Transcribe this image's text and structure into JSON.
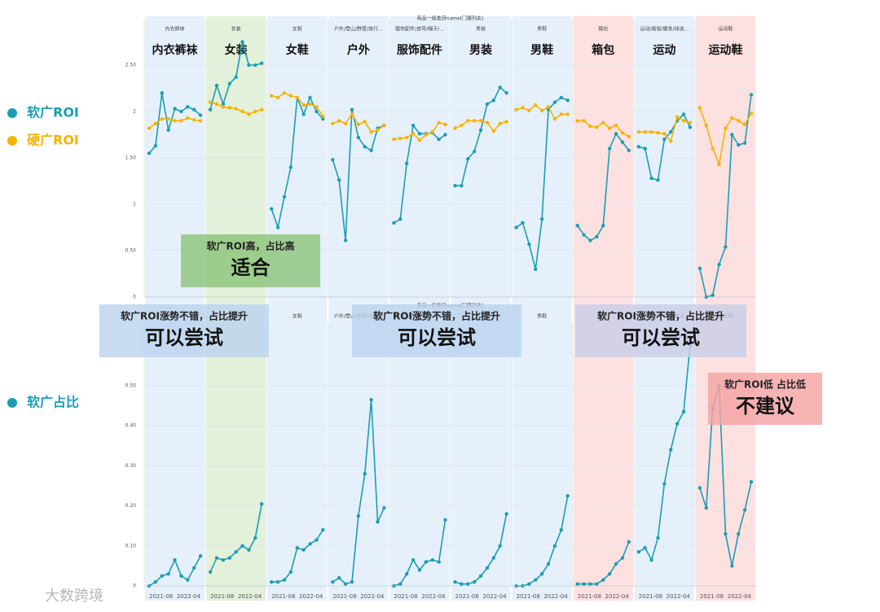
{
  "chart_data": [
    {
      "type": "line",
      "title": "商品一级类目name(门捷列夫)",
      "series": [
        {
          "name": "软广ROI",
          "color": "#1a9eb5"
        },
        {
          "name": "硬广ROI",
          "color": "#f5b400"
        }
      ],
      "ylim": [
        0,
        2.75
      ],
      "yticks": [
        0,
        {
          "value": 0.5,
          "label": "0.50"
        },
        1,
        {
          "value": 1.5,
          "label": "1.50"
        },
        2,
        {
          "value": 2.5,
          "label": "2.50"
        }
      ],
      "grid": true,
      "facets": [
        {
          "header": "内衣裤袜",
          "label": "内衣裤袜",
          "background": "#e6f0fb",
          "series": [
            {
              "values": [
                1.55,
                1.63,
                2.2,
                1.8,
                2.03,
                2.0,
                2.05,
                2.02,
                1.96
              ]
            },
            {
              "values": [
                1.82,
                1.87,
                1.92,
                1.92,
                1.9,
                1.9,
                1.93,
                1.91,
                1.9
              ]
            }
          ]
        },
        {
          "header": "女装",
          "label": "女装",
          "background": "#e3f0da",
          "series": [
            {
              "values": [
                2.02,
                2.28,
                2.08,
                2.3,
                2.37,
                2.75,
                2.5,
                2.5,
                2.52
              ]
            },
            {
              "values": [
                2.1,
                2.08,
                2.05,
                2.04,
                2.03,
                2.0,
                1.97,
                2.0,
                2.02
              ]
            }
          ]
        },
        {
          "header": "女鞋",
          "label": "女鞋",
          "background": "#e6f0fb",
          "series": [
            {
              "values": [
                0.95,
                0.75,
                1.08,
                1.4,
                2.15,
                1.97,
                2.15,
                2.0,
                1.92
              ]
            },
            {
              "values": [
                2.17,
                2.15,
                2.2,
                2.17,
                2.15,
                2.07,
                2.08,
                2.05,
                1.95
              ]
            }
          ]
        },
        {
          "header": "户外/登山/野营/旅行...",
          "label": "户外",
          "background": "#e6f0fb",
          "series": [
            {
              "values": [
                1.48,
                1.26,
                0.61,
                2.02,
                1.72,
                1.62,
                1.58,
                1.82,
                1.85
              ]
            },
            {
              "values": [
                1.87,
                1.9,
                1.87,
                1.97,
                1.86,
                1.89,
                1.78,
                1.8,
                1.85
              ]
            }
          ]
        },
        {
          "header": "服饰配件/皮带/帽子/...",
          "label": "服饰配件",
          "background": "#e6f0fb",
          "series": [
            {
              "values": [
                0.8,
                0.84,
                1.44,
                1.85,
                1.76,
                1.76,
                1.77,
                1.7,
                1.75
              ]
            },
            {
              "values": [
                1.7,
                1.71,
                1.72,
                1.76,
                1.69,
                1.75,
                1.78,
                1.88,
                1.86
              ]
            }
          ]
        },
        {
          "header": "男装",
          "label": "男装",
          "background": "#e6f0fb",
          "series": [
            {
              "values": [
                1.2,
                1.2,
                1.49,
                1.57,
                1.8,
                2.08,
                2.12,
                2.26,
                2.2
              ]
            },
            {
              "values": [
                1.82,
                1.85,
                1.9,
                1.9,
                1.9,
                1.88,
                1.79,
                1.87,
                1.89
              ]
            }
          ]
        },
        {
          "header": "男鞋",
          "label": "男鞋",
          "background": "#e6f0fb",
          "series": [
            {
              "values": [
                0.75,
                0.8,
                0.57,
                0.3,
                0.84,
                2.02,
                2.1,
                2.15,
                2.12
              ]
            },
            {
              "values": [
                2.02,
                2.04,
                2.01,
                2.07,
                2.01,
                2.05,
                1.92,
                1.97,
                1.97
              ]
            }
          ]
        },
        {
          "header": "箱包",
          "label": "箱包",
          "background": "#fde1e1",
          "series": [
            {
              "values": [
                0.77,
                0.67,
                0.61,
                0.65,
                0.77,
                1.6,
                1.76,
                1.67,
                1.58
              ]
            },
            {
              "values": [
                1.9,
                1.9,
                1.84,
                1.83,
                1.88,
                1.82,
                1.85,
                1.77,
                1.73
              ]
            }
          ]
        },
        {
          "header": "运动/瑜伽/健身/球迷...",
          "label": "运动",
          "background": "#e6f0fb",
          "series": [
            {
              "values": [
                1.62,
                1.6,
                1.28,
                1.26,
                1.7,
                1.78,
                1.9,
                1.97,
                1.83
              ]
            },
            {
              "values": [
                1.78,
                1.78,
                1.78,
                1.77,
                1.76,
                1.68,
                1.94,
                1.9,
                1.88
              ]
            }
          ]
        },
        {
          "header": "运动鞋",
          "label": "运动鞋",
          "background": "#fde1e1",
          "series": [
            {
              "values": [
                0.31,
                0.0,
                0.02,
                0.35,
                0.54,
                1.75,
                1.64,
                1.66,
                2.18
              ]
            },
            {
              "values": [
                2.04,
                1.85,
                1.6,
                1.43,
                1.82,
                1.93,
                1.9,
                1.86,
                1.98
              ]
            }
          ]
        }
      ]
    },
    {
      "type": "line",
      "title": "商品一级类目name(门捷列夫)",
      "series": [
        {
          "name": "软广占比",
          "color": "#1a9eb5"
        }
      ],
      "categories": [
        "2021-08",
        null,
        null,
        null,
        null,
        null,
        null,
        null,
        "2022-04"
      ],
      "ylim": [
        0,
        0.6
      ],
      "yticks": [
        0,
        {
          "value": 0.1,
          "label": "0.10"
        },
        {
          "value": 0.2,
          "label": "0.20"
        },
        {
          "value": 0.3,
          "label": "0.30"
        },
        {
          "value": 0.4,
          "label": "0.40"
        },
        {
          "value": 0.5,
          "label": "0.50"
        }
      ],
      "grid": true,
      "facets": [
        {
          "header": "内衣裤袜",
          "series": [
            {
              "values": [
                0,
                0.01,
                0.025,
                0.03,
                0.065,
                0.025,
                0.015,
                0.045,
                0.075
              ]
            }
          ]
        },
        {
          "header": "女装",
          "series": [
            {
              "values": [
                0.035,
                0.07,
                0.065,
                0.07,
                0.085,
                0.1,
                0.09,
                0.12,
                0.205
              ]
            }
          ]
        },
        {
          "header": "女鞋",
          "series": [
            {
              "values": [
                0.01,
                0.01,
                0.015,
                0.035,
                0.095,
                0.09,
                0.105,
                0.115,
                0.14
              ]
            }
          ]
        },
        {
          "header": "户外/登山/野营/旅行...",
          "series": [
            {
              "values": [
                0.01,
                0.02,
                0.005,
                0.01,
                0.175,
                0.28,
                0.465,
                0.16,
                0.195
              ]
            }
          ]
        },
        {
          "header": "服饰配件/皮带/帽子/...",
          "series": [
            {
              "values": [
                0,
                0.005,
                0.03,
                0.065,
                0.04,
                0.06,
                0.065,
                0.06,
                0.165
              ]
            }
          ]
        },
        {
          "header": "男装",
          "series": [
            {
              "values": [
                0.01,
                0.005,
                0.005,
                0.01,
                0.025,
                0.045,
                0.07,
                0.1,
                0.18
              ]
            }
          ]
        },
        {
          "header": "男鞋",
          "series": [
            {
              "values": [
                0,
                0,
                0.005,
                0.015,
                0.03,
                0.055,
                0.1,
                0.14,
                0.225
              ]
            }
          ]
        },
        {
          "header": "箱包",
          "series": [
            {
              "values": [
                0.005,
                0.005,
                0.005,
                0.005,
                0.015,
                0.03,
                0.055,
                0.07,
                0.11
              ]
            }
          ]
        },
        {
          "header": "运动/瑜伽/健身/球迷...",
          "series": [
            {
              "values": [
                0.085,
                0.095,
                0.065,
                0.12,
                0.255,
                0.34,
                0.405,
                0.435,
                0.6
              ]
            }
          ]
        },
        {
          "header": "运动鞋",
          "series": [
            {
              "values": [
                0.245,
                0.195,
                0.445,
                0.5,
                0.13,
                0.05,
                0.13,
                0.19,
                0.26
              ]
            }
          ]
        }
      ]
    }
  ],
  "annotations": [
    {
      "subtitle": "软广ROI高，占比高",
      "text": "适合",
      "color": "#8cc57a"
    },
    {
      "subtitle": "软广ROI涨势不错，占比提升",
      "text": "可以尝试",
      "color": "#bcd3ee"
    },
    {
      "subtitle": "软广ROI涨势不错，占比提升",
      "text": "可以尝试",
      "color": "#bcd3ee"
    },
    {
      "subtitle": "软广ROI涨势不错，占比提升",
      "text": "可以尝试",
      "color": "#c9cde6"
    },
    {
      "subtitle": "软广ROI低 占比低",
      "text": "不建议",
      "color": "#f4a3a3"
    }
  ],
  "watermark": "大数跨境"
}
